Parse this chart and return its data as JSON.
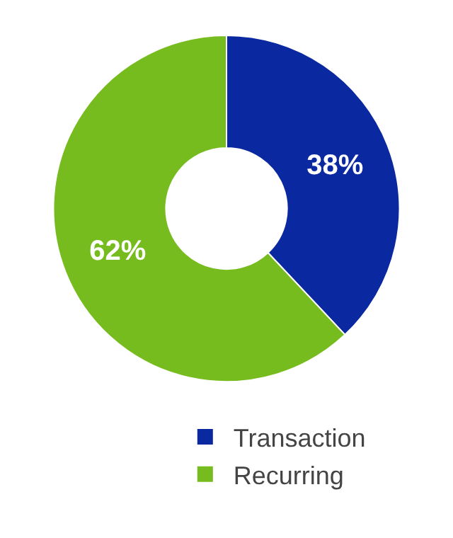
{
  "chart_data": {
    "type": "donut",
    "categories": [
      "Transaction",
      "Recurring"
    ],
    "values": [
      38,
      62
    ],
    "colors": [
      "#0a28a0",
      "#77bc1f"
    ],
    "value_labels": [
      "38%",
      "62%"
    ],
    "legend": "bottom"
  }
}
